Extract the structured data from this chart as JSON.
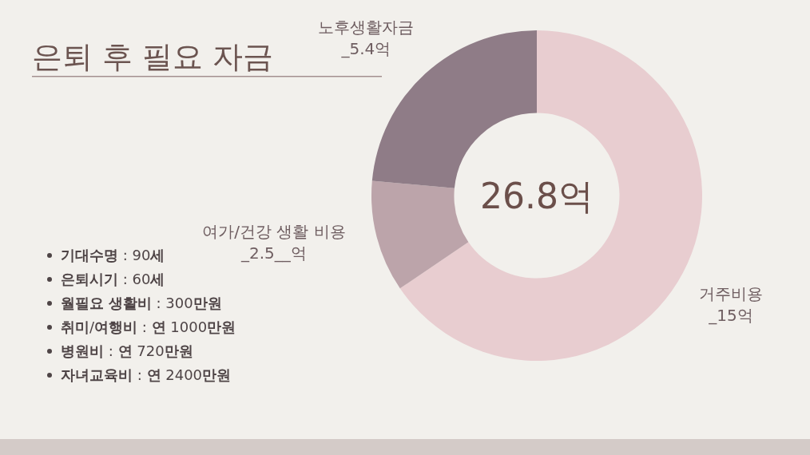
{
  "chart_data": {
    "type": "donut",
    "title": "은퇴 후 필요 자금",
    "categories": [
      "거주비용",
      "여가/건강 생활 비용",
      "노후생활자금"
    ],
    "values": [
      15,
      2.5,
      5.4
    ],
    "colors": [
      "#e8cdd0",
      "#bca4aa",
      "#8f7c87"
    ],
    "value_labels": [
      "_15억",
      "_2.5__억",
      "_5.4억"
    ],
    "annotations": [
      "26.8억",
      "기대수명 : 90세",
      "은퇴시기 : 60세",
      "월필요 생활비 : 300만원",
      "취미/여행비 : 연 1000만원",
      "병원비 : 연 720만원",
      "자녀교육비 : 연 2400만원"
    ]
  }
}
